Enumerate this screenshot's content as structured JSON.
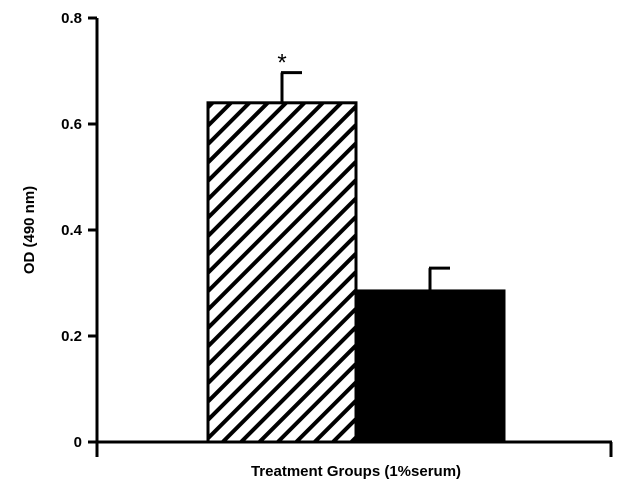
{
  "chart_data": {
    "type": "bar",
    "xlabel": "Treatment Groups (1%serum)",
    "ylabel": "OD (490 nm)",
    "ylim": [
      0,
      0.8
    ],
    "yticks": [
      "0",
      "0.2",
      "0.4",
      "0.6",
      "0.8"
    ],
    "grid": false,
    "series": [
      {
        "values": [
          0.64,
          0.285
        ],
        "errors": [
          0.057,
          0.043
        ]
      }
    ],
    "bar_fills": [
      "hatched",
      "solid"
    ],
    "annotations": [
      {
        "bar": 0,
        "text": "*"
      }
    ]
  }
}
